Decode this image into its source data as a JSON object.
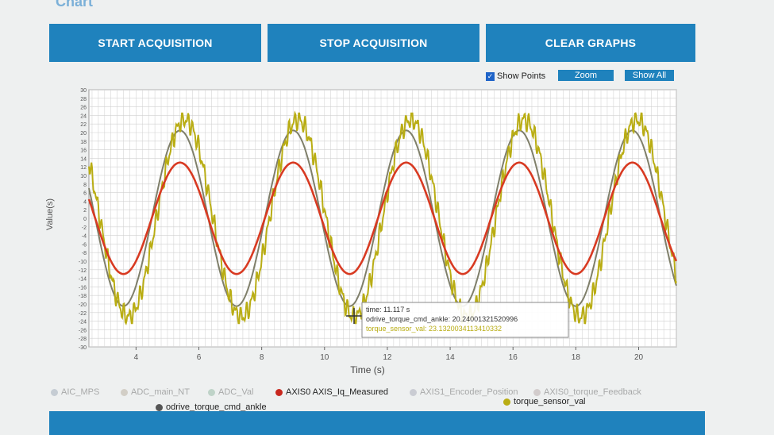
{
  "page": {
    "title": "Chart"
  },
  "toolbar": {
    "start_label": "START ACQUISITION",
    "stop_label": "STOP ACQUISITION",
    "clear_label": "CLEAR GRAPHS"
  },
  "controls": {
    "show_points_label": "Show Points",
    "show_points_checked": true,
    "zoom_label": "Zoom",
    "show_all_label": "Show All"
  },
  "chart_data": {
    "type": "line",
    "xlabel": "Time (s)",
    "ylabel": "Value(s)",
    "xlim": [
      2.5,
      21.2
    ],
    "ylim": [
      -30,
      30
    ],
    "x_ticks": [
      4,
      6,
      8,
      10,
      12,
      14,
      16,
      18,
      20
    ],
    "y_ticks": [
      30,
      28,
      26,
      24,
      22,
      20,
      18,
      16,
      14,
      12,
      10,
      8,
      6,
      4,
      2,
      0,
      -2,
      -4,
      -6,
      -8,
      -10,
      -12,
      -14,
      -16,
      -18,
      -20,
      -22,
      -24,
      -26,
      -28,
      -30
    ],
    "grid": true,
    "period": 3.6,
    "series": [
      {
        "name": "AXIS0 AXIS_Iq_Measured",
        "color": "#d83a22",
        "amplitude": 13,
        "phase": 0.9,
        "start_x": 2.5,
        "end_x": 21.2
      },
      {
        "name": "odrive_torque_cmd_ankle",
        "color": "#7f7f6a",
        "amplitude": 20.5,
        "phase": 0.9,
        "start_x": 2.5,
        "end_x": 21.2
      },
      {
        "name": "torque_sensor_val",
        "color": "#b9ad14",
        "amplitude": 23,
        "phase": 1.05,
        "start_x": 2.5,
        "end_x": 21.2
      }
    ],
    "tooltip": {
      "lines": [
        "time: 11.117 s",
        "odrive_torque_cmd_ankle: 20.24001321520996",
        "torque_sensor_val: 23.1320034113410332"
      ]
    }
  },
  "legend": {
    "faded": [
      "AIC_MPS",
      "ADC_main_NT",
      "ADC_Val",
      "AXIS1_Encoder_Position",
      "AXIS0_torque_Feedback"
    ],
    "active": [
      {
        "label": "AXIS0 AXIS_Iq_Measured",
        "color": "#c8281e"
      },
      {
        "label": "odrive_torque_cmd_ankle",
        "color": "#555555"
      },
      {
        "label": "torque_sensor_val",
        "color": "#b9ad14"
      }
    ]
  }
}
